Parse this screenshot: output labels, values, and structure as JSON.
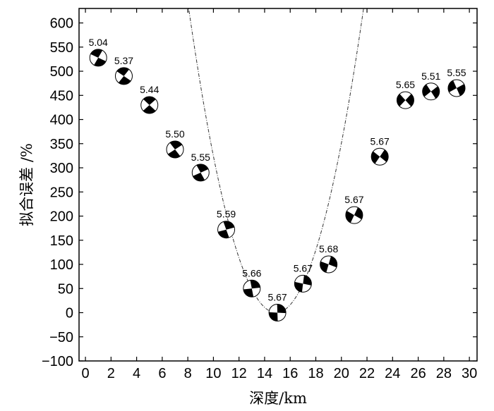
{
  "chart_data": {
    "type": "scatter",
    "title": "",
    "xlabel": "深度/km",
    "ylabel": "拟合误差 /%",
    "xlim": [
      -0.5,
      30.6
    ],
    "ylim": [
      -100,
      630
    ],
    "x_ticks": [
      0,
      2,
      4,
      6,
      8,
      10,
      12,
      14,
      16,
      18,
      20,
      22,
      24,
      26,
      28,
      30
    ],
    "y_ticks": [
      -100,
      -50,
      0,
      50,
      100,
      150,
      200,
      250,
      300,
      350,
      400,
      450,
      500,
      550,
      600
    ],
    "y_tick_labels": [
      "−100",
      "−50",
      "0",
      "50",
      "100",
      "150",
      "200",
      "250",
      "300",
      "350",
      "400",
      "450",
      "500",
      "550",
      "600"
    ],
    "marker": "focal-mechanism-beachball",
    "points": [
      {
        "x": 1,
        "y": 528,
        "label": "5.04"
      },
      {
        "x": 3,
        "y": 490,
        "label": "5.37"
      },
      {
        "x": 5,
        "y": 430,
        "label": "5.44"
      },
      {
        "x": 7,
        "y": 338,
        "label": "5.50"
      },
      {
        "x": 9,
        "y": 290,
        "label": "5.55"
      },
      {
        "x": 11,
        "y": 172,
        "label": "5.59"
      },
      {
        "x": 13,
        "y": 50,
        "label": "5.66"
      },
      {
        "x": 15,
        "y": 0,
        "label": "5.67"
      },
      {
        "x": 17,
        "y": 60,
        "label": "5.67"
      },
      {
        "x": 19,
        "y": 100,
        "label": "5.68"
      },
      {
        "x": 21,
        "y": 202,
        "label": "5.67"
      },
      {
        "x": 23,
        "y": 323,
        "label": "5.67"
      },
      {
        "x": 25,
        "y": 440,
        "label": "5.65"
      },
      {
        "x": 27,
        "y": 458,
        "label": "5.51"
      },
      {
        "x": 29,
        "y": 465,
        "label": "5.55"
      }
    ],
    "fit_curve": {
      "type": "quadratic",
      "vertex_x": 14.9,
      "vertex_y": 0,
      "a": 13.5
    },
    "grid": false,
    "legend": "none"
  }
}
